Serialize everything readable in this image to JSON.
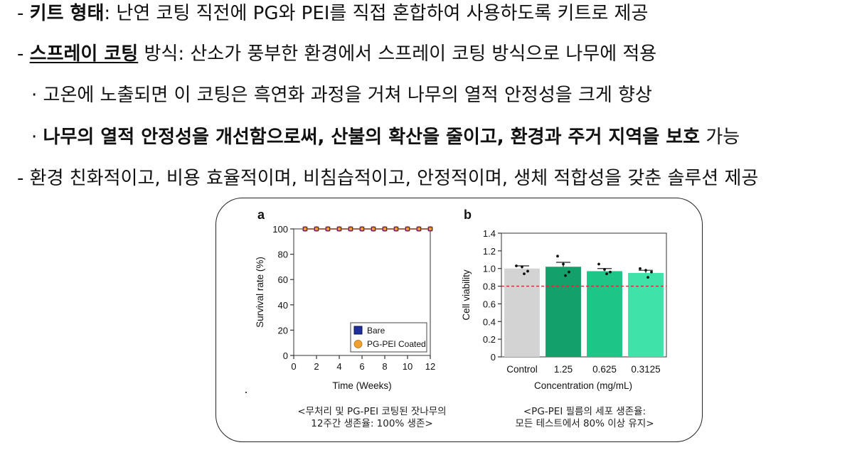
{
  "text": {
    "l1": {
      "dash": "- ",
      "bold": "키트 형태",
      "rest": ": 난연 코팅 직전에 PG와 PEI를 직접 혼합하여 사용하도록 키트로 제공"
    },
    "l2": {
      "dash": "- ",
      "bold": "스프레이 코팅",
      "rest": " 방식: 산소가 풍부한 환경에서 스프레이 코팅 방식으로 나무에 적용"
    },
    "l3": {
      "dot": "· ",
      "rest": "고온에 노출되면 이 코팅은 흑연화 과정을 거쳐 나무의 열적 안정성을 크게 향상"
    },
    "l4": {
      "dot": "· ",
      "bold": "나무의 열적 안정성을 개선함으로써, 산불의 확산을 줄이고, 환경과 주거 지역을 보호",
      "rest": " 가능"
    },
    "l5": {
      "dash": "- ",
      "rest": "환경 친화적이고, 비용 효율적이며, 비침습적이고, 안정적이며, 생체 적합성을 갖춘 솔루션 제공"
    }
  },
  "captions": {
    "a1": "<무처리 및 PG-PEI 코팅된 잣나무의",
    "a2": "12주간 생존율: 100% 생존>",
    "b1": "<PG-PEI 필름의 세포 생존율:",
    "b2": "모든 테스트에서 80% 이상 유지>"
  },
  "chart_data": [
    {
      "type": "line",
      "panel": "a",
      "xlabel": "Time (Weeks)",
      "ylabel": "Survival rate (%)",
      "xlim": [
        0,
        12
      ],
      "ylim": [
        0,
        100
      ],
      "xticks": [
        0,
        2,
        4,
        6,
        8,
        10,
        12
      ],
      "yticks": [
        0,
        20,
        40,
        60,
        80,
        100
      ],
      "x": [
        1,
        2,
        3,
        4,
        5,
        6,
        7,
        8,
        9,
        10,
        11,
        12
      ],
      "series": [
        {
          "name": "Bare",
          "values": [
            100,
            100,
            100,
            100,
            100,
            100,
            100,
            100,
            100,
            100,
            100,
            100
          ],
          "color": "#1f2f9c"
        },
        {
          "name": "PG-PEI Coated",
          "values": [
            100,
            100,
            100,
            100,
            100,
            100,
            100,
            100,
            100,
            100,
            100,
            100
          ],
          "color": "#f0a030"
        }
      ],
      "legend": "bottom-right"
    },
    {
      "type": "bar",
      "panel": "b",
      "xlabel": "Concentration (mg/mL)",
      "ylabel": "Cell viability",
      "ylim": [
        0,
        1.4
      ],
      "yticks": [
        "0",
        "0.2",
        "0.4",
        "0.6",
        "0.8",
        "1.0",
        "1.2",
        "1.4"
      ],
      "categories": [
        "Control",
        "1.25",
        "0.625",
        "0.3125"
      ],
      "values": [
        1.0,
        1.02,
        0.97,
        0.95
      ],
      "errors": [
        0.03,
        0.05,
        0.03,
        0.03
      ],
      "colors": [
        "#d3d3d3",
        "#14a06a",
        "#1dc586",
        "#3fe3a9"
      ],
      "points": [
        [
          1.03,
          1.02,
          0.97,
          0.94
        ],
        [
          1.14,
          1.05,
          0.96,
          0.92
        ],
        [
          1.05,
          0.99,
          0.96,
          0.94
        ],
        [
          1.0,
          0.98,
          0.96,
          0.9
        ]
      ],
      "threshold": 0.8,
      "threshold_color": "#d42a2a"
    }
  ]
}
